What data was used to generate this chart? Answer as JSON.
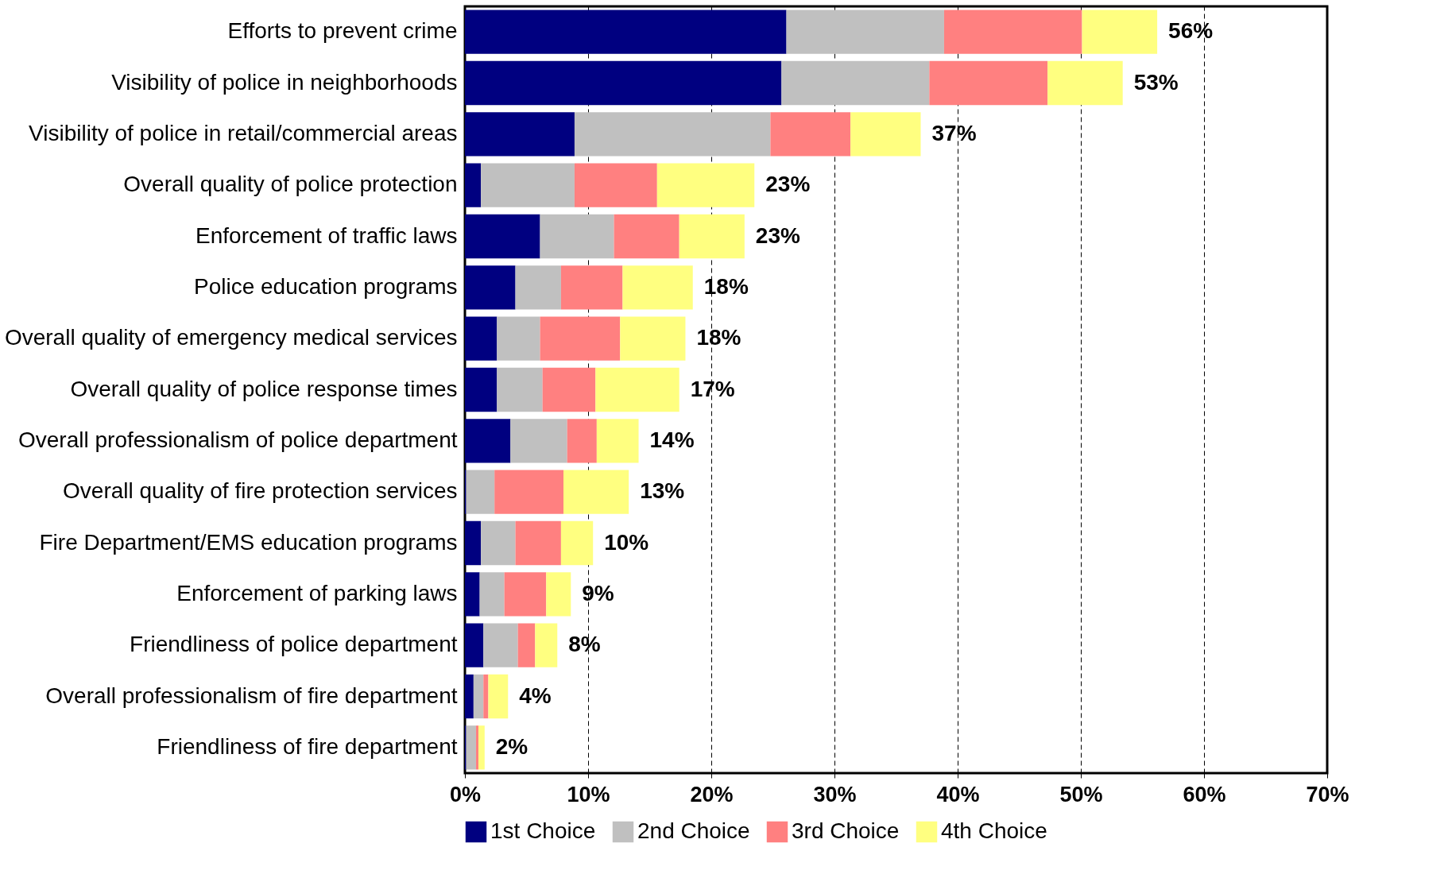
{
  "chart_data": {
    "type": "bar",
    "orientation": "horizontal",
    "stacked": true,
    "categories": [
      "Efforts to prevent crime",
      "Visibility of police in neighborhoods",
      "Visibility of police in retail/commercial areas",
      "Overall quality of police protection",
      "Enforcement of traffic laws",
      "Police education programs",
      "Overall quality of emergency medical services",
      "Overall quality of police response times",
      "Overall professionalism of police department",
      "Overall quality of fire protection services",
      "Fire Department/EMS education programs",
      "Enforcement of parking laws",
      "Friendliness of police department",
      "Overall professionalism of fire department",
      "Friendliness of fire department"
    ],
    "series": [
      {
        "name": "1st Choice",
        "color": "#000080",
        "values": [
          26.1,
          25.7,
          8.9,
          1.3,
          6.1,
          4.1,
          2.6,
          2.6,
          3.7,
          0.1,
          1.3,
          1.2,
          1.5,
          0.7,
          0.1
        ]
      },
      {
        "name": "2nd Choice",
        "color": "#c0c0c0",
        "values": [
          12.8,
          12.0,
          15.9,
          7.6,
          6.0,
          3.7,
          3.5,
          3.7,
          4.6,
          2.3,
          2.8,
          2.0,
          2.8,
          0.8,
          0.8
        ]
      },
      {
        "name": "3rd Choice",
        "color": "#ff8080",
        "values": [
          11.2,
          9.6,
          6.5,
          6.7,
          5.3,
          5.0,
          6.5,
          4.3,
          2.4,
          5.6,
          3.7,
          3.4,
          1.4,
          0.4,
          0.2
        ]
      },
      {
        "name": "4th Choice",
        "color": "#ffff80",
        "values": [
          6.1,
          6.1,
          5.7,
          7.9,
          5.3,
          5.7,
          5.3,
          6.8,
          3.4,
          5.3,
          2.6,
          2.0,
          1.8,
          1.6,
          0.5
        ]
      }
    ],
    "totals": [
      "56%",
      "53%",
      "37%",
      "23%",
      "23%",
      "18%",
      "18%",
      "17%",
      "14%",
      "13%",
      "10%",
      "9%",
      "8%",
      "4%",
      "2%"
    ],
    "xlim": [
      0,
      70
    ],
    "xticks": [
      {
        "value": 0,
        "label": "0%"
      },
      {
        "value": 10,
        "label": "10%"
      },
      {
        "value": 20,
        "label": "20%"
      },
      {
        "value": 30,
        "label": "30%"
      },
      {
        "value": 40,
        "label": "40%"
      },
      {
        "value": 50,
        "label": "50%"
      },
      {
        "value": 60,
        "label": "60%"
      },
      {
        "value": 70,
        "label": "70%"
      }
    ],
    "grid": "x",
    "legend": "bottom"
  }
}
